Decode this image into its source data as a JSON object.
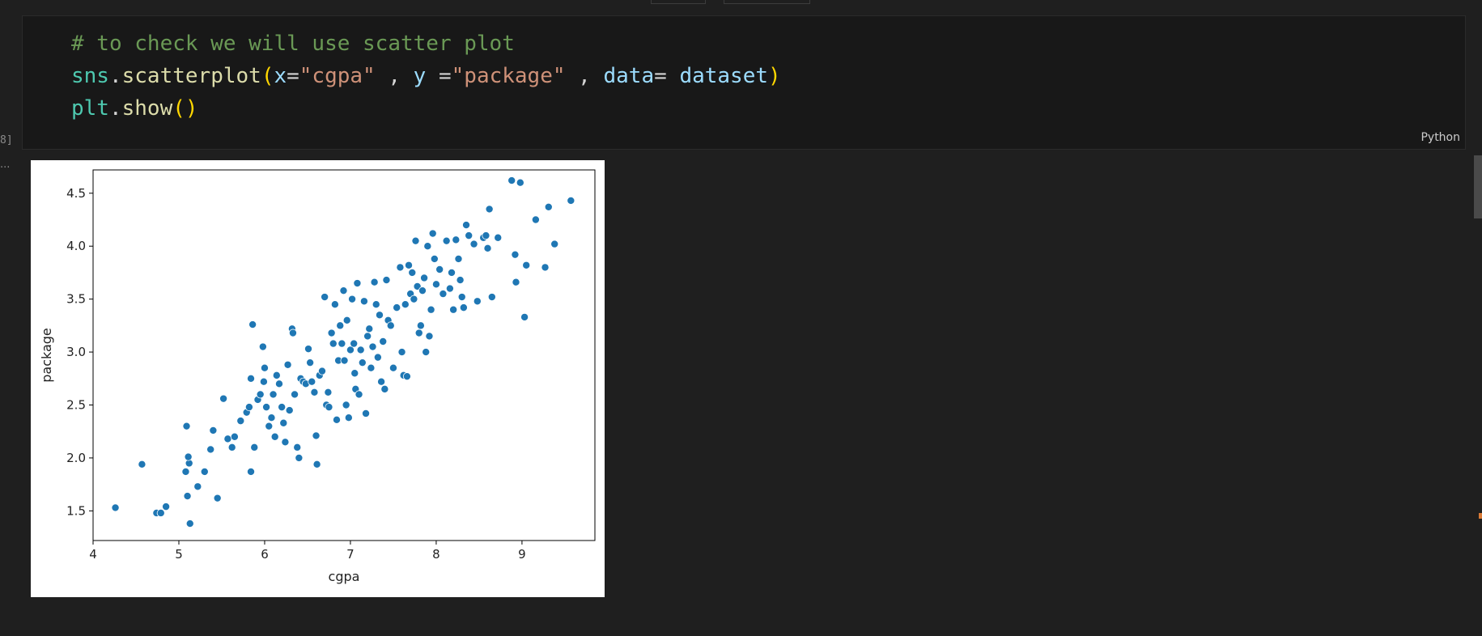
{
  "cell": {
    "execution_count": "8]",
    "language": "Python",
    "code_lines": [
      [
        [
          "c-comment",
          "# to check we will use scatter plot"
        ]
      ],
      [
        [
          "c-module",
          "sns"
        ],
        [
          "c-op",
          "."
        ],
        [
          "c-func",
          "scatterplot"
        ],
        [
          "c-paren",
          "("
        ],
        [
          "c-param",
          "x"
        ],
        [
          "c-op",
          "="
        ],
        [
          "c-string",
          "\"cgpa\""
        ],
        [
          "c-op",
          " , "
        ],
        [
          "c-param",
          "y"
        ],
        [
          "c-op",
          " ="
        ],
        [
          "c-string",
          "\"package\""
        ],
        [
          "c-op",
          " , "
        ],
        [
          "c-param",
          "data"
        ],
        [
          "c-op",
          "= "
        ],
        [
          "c-param",
          "dataset"
        ],
        [
          "c-paren",
          ")"
        ]
      ],
      [
        [
          "c-module",
          "plt"
        ],
        [
          "c-op",
          "."
        ],
        [
          "c-func",
          "show"
        ],
        [
          "c-paren",
          "()"
        ]
      ]
    ]
  },
  "output": {
    "marker": "..."
  },
  "chart_data": {
    "type": "scatter",
    "title": "",
    "xlabel": "cgpa",
    "ylabel": "package",
    "xlim": [
      4.0,
      9.85
    ],
    "ylim": [
      1.22,
      4.72
    ],
    "xticks": [
      "4",
      "5",
      "6",
      "7",
      "8",
      "9"
    ],
    "yticks": [
      "1.5",
      "2.0",
      "2.5",
      "3.0",
      "3.5",
      "4.0",
      "4.5"
    ],
    "grid": false,
    "legend": "none",
    "color": "#1f77b4",
    "points": [
      [
        4.26,
        1.53
      ],
      [
        4.57,
        1.94
      ],
      [
        4.74,
        1.48
      ],
      [
        4.79,
        1.48
      ],
      [
        4.85,
        1.54
      ],
      [
        5.09,
        2.3
      ],
      [
        5.1,
        1.64
      ],
      [
        5.12,
        1.95
      ],
      [
        5.11,
        2.01
      ],
      [
        5.13,
        1.38
      ],
      [
        5.08,
        1.87
      ],
      [
        5.22,
        1.73
      ],
      [
        5.3,
        1.87
      ],
      [
        5.37,
        2.08
      ],
      [
        5.4,
        2.26
      ],
      [
        5.45,
        1.62
      ],
      [
        5.52,
        2.56
      ],
      [
        5.57,
        2.18
      ],
      [
        5.62,
        2.1
      ],
      [
        5.65,
        2.2
      ],
      [
        5.72,
        2.35
      ],
      [
        5.79,
        2.43
      ],
      [
        5.82,
        2.48
      ],
      [
        5.84,
        1.87
      ],
      [
        5.86,
        3.26
      ],
      [
        5.84,
        2.75
      ],
      [
        5.88,
        2.1
      ],
      [
        5.92,
        2.55
      ],
      [
        5.95,
        2.6
      ],
      [
        5.98,
        3.05
      ],
      [
        5.99,
        2.72
      ],
      [
        6.0,
        2.85
      ],
      [
        6.02,
        2.48
      ],
      [
        6.05,
        2.3
      ],
      [
        6.08,
        2.38
      ],
      [
        6.1,
        2.6
      ],
      [
        6.12,
        2.2
      ],
      [
        6.14,
        2.78
      ],
      [
        6.17,
        2.7
      ],
      [
        6.2,
        2.48
      ],
      [
        6.22,
        2.33
      ],
      [
        6.24,
        2.15
      ],
      [
        6.27,
        2.88
      ],
      [
        6.29,
        2.45
      ],
      [
        6.32,
        3.22
      ],
      [
        6.33,
        3.18
      ],
      [
        6.35,
        2.6
      ],
      [
        6.38,
        2.1
      ],
      [
        6.4,
        2.0
      ],
      [
        6.42,
        2.75
      ],
      [
        6.45,
        2.72
      ],
      [
        6.48,
        2.7
      ],
      [
        6.51,
        3.03
      ],
      [
        6.53,
        2.9
      ],
      [
        6.55,
        2.72
      ],
      [
        6.58,
        2.62
      ],
      [
        6.6,
        2.21
      ],
      [
        6.61,
        1.94
      ],
      [
        6.64,
        2.78
      ],
      [
        6.67,
        2.82
      ],
      [
        6.7,
        3.52
      ],
      [
        6.72,
        2.5
      ],
      [
        6.74,
        2.62
      ],
      [
        6.75,
        2.48
      ],
      [
        6.78,
        3.18
      ],
      [
        6.8,
        3.08
      ],
      [
        6.82,
        3.45
      ],
      [
        6.84,
        2.36
      ],
      [
        6.86,
        2.92
      ],
      [
        6.88,
        3.25
      ],
      [
        6.9,
        3.08
      ],
      [
        6.92,
        3.58
      ],
      [
        6.93,
        2.92
      ],
      [
        6.95,
        2.5
      ],
      [
        6.96,
        3.3
      ],
      [
        6.98,
        2.38
      ],
      [
        7.0,
        3.02
      ],
      [
        7.02,
        3.5
      ],
      [
        7.04,
        3.08
      ],
      [
        7.05,
        2.8
      ],
      [
        7.06,
        2.65
      ],
      [
        7.08,
        3.65
      ],
      [
        7.1,
        2.6
      ],
      [
        7.12,
        3.02
      ],
      [
        7.14,
        2.9
      ],
      [
        7.16,
        3.48
      ],
      [
        7.18,
        2.42
      ],
      [
        7.2,
        3.15
      ],
      [
        7.22,
        3.22
      ],
      [
        7.24,
        2.85
      ],
      [
        7.26,
        3.05
      ],
      [
        7.28,
        3.66
      ],
      [
        7.3,
        3.45
      ],
      [
        7.32,
        2.95
      ],
      [
        7.34,
        3.35
      ],
      [
        7.36,
        2.72
      ],
      [
        7.38,
        3.1
      ],
      [
        7.4,
        2.65
      ],
      [
        7.42,
        3.68
      ],
      [
        7.44,
        3.3
      ],
      [
        7.47,
        3.25
      ],
      [
        7.5,
        2.85
      ],
      [
        7.54,
        3.42
      ],
      [
        7.58,
        3.8
      ],
      [
        7.6,
        3.0
      ],
      [
        7.62,
        2.78
      ],
      [
        7.64,
        3.45
      ],
      [
        7.66,
        2.77
      ],
      [
        7.68,
        3.82
      ],
      [
        7.7,
        3.55
      ],
      [
        7.72,
        3.75
      ],
      [
        7.74,
        3.5
      ],
      [
        7.76,
        4.05
      ],
      [
        7.78,
        3.62
      ],
      [
        7.8,
        3.18
      ],
      [
        7.82,
        3.25
      ],
      [
        7.84,
        3.58
      ],
      [
        7.86,
        3.7
      ],
      [
        7.88,
        3.0
      ],
      [
        7.9,
        4.0
      ],
      [
        7.92,
        3.15
      ],
      [
        7.94,
        3.4
      ],
      [
        7.96,
        4.12
      ],
      [
        7.98,
        3.88
      ],
      [
        8.0,
        3.64
      ],
      [
        8.04,
        3.78
      ],
      [
        8.08,
        3.55
      ],
      [
        8.12,
        4.05
      ],
      [
        8.16,
        3.6
      ],
      [
        8.18,
        3.75
      ],
      [
        8.2,
        3.4
      ],
      [
        8.23,
        4.06
      ],
      [
        8.26,
        3.88
      ],
      [
        8.28,
        3.68
      ],
      [
        8.3,
        3.52
      ],
      [
        8.32,
        3.42
      ],
      [
        8.35,
        4.2
      ],
      [
        8.38,
        4.1
      ],
      [
        8.44,
        4.02
      ],
      [
        8.48,
        3.48
      ],
      [
        8.55,
        4.08
      ],
      [
        8.58,
        4.1
      ],
      [
        8.6,
        3.98
      ],
      [
        8.62,
        4.35
      ],
      [
        8.65,
        3.52
      ],
      [
        8.72,
        4.08
      ],
      [
        8.88,
        4.62
      ],
      [
        8.92,
        3.92
      ],
      [
        8.93,
        3.66
      ],
      [
        8.98,
        4.6
      ],
      [
        9.03,
        3.33
      ],
      [
        9.05,
        3.82
      ],
      [
        9.16,
        4.25
      ],
      [
        9.27,
        3.8
      ],
      [
        9.31,
        4.37
      ],
      [
        9.38,
        4.02
      ],
      [
        9.57,
        4.43
      ]
    ]
  }
}
